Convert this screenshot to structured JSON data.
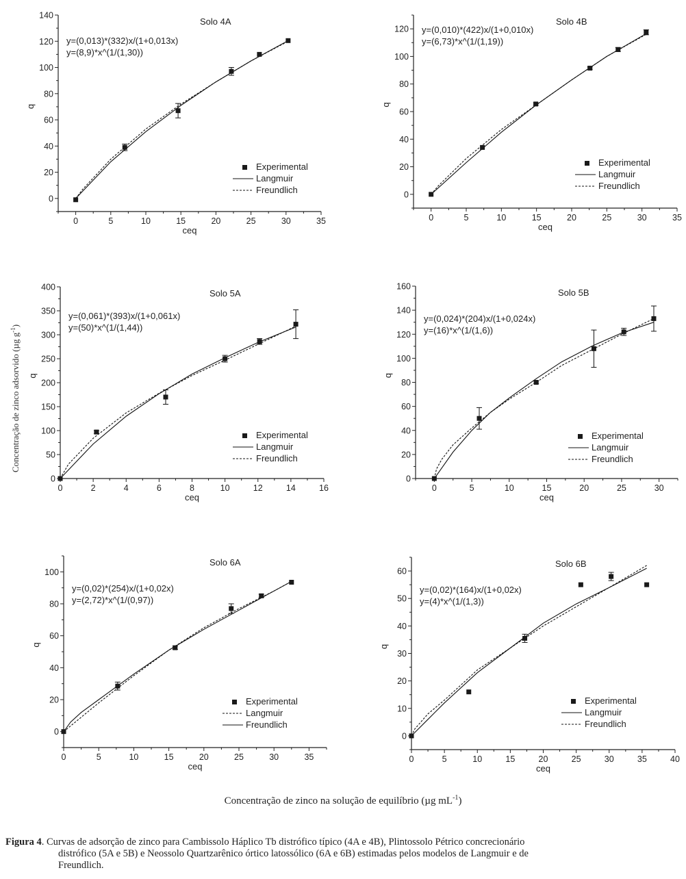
{
  "figure": {
    "shared_ylabel": "Concentração de zinco adsorvido (µg g",
    "shared_ylabel_sup": "-1",
    "shared_ylabel_end": ")",
    "shared_xlabel": "Concentração de zinco na solução de equilíbrio (µg mL",
    "shared_xlabel_sup": "-1",
    "shared_xlabel_end": ")",
    "caption_label": "Figura 4",
    "caption_line1": ". Curvas de adsorção de zinco para Cambissolo Háplico Tb distrófico típico (4A e 4B), Plintossolo Pétrico concrecionário",
    "caption_line2": "distrófico (5A e 5B) e Neossolo Quartzarênico órtico latossólico (6A e 6B) estimadas pelos modelos de Langmuir e de",
    "caption_line3": "Freundlich."
  },
  "chart_data": [
    {
      "type": "scatter",
      "title": "Solo 4A",
      "xlabel": "ceq",
      "ylabel": "q",
      "xlim": [
        -2.5,
        35
      ],
      "ylim": [
        -10,
        140
      ],
      "xticks": [
        0,
        5,
        10,
        15,
        20,
        25,
        30,
        35
      ],
      "yticks": [
        0,
        20,
        40,
        60,
        80,
        100,
        120,
        140
      ],
      "equations": [
        "y=(0,013)*(332)x/(1+0,013x)",
        "y=(8,9)*x^(1/(1,30))"
      ],
      "legend": [
        {
          "label": "Experimental",
          "style": "marker"
        },
        {
          "label": "Langmuir",
          "style": "solid"
        },
        {
          "label": "Freundlich",
          "style": "dashed"
        }
      ],
      "legend_position": "bottom-right",
      "series": [
        {
          "name": "Experimental",
          "x": [
            0,
            7,
            14.6,
            22.2,
            26.2,
            30.3
          ],
          "y": [
            -1,
            39,
            67,
            97,
            110,
            120.5
          ],
          "yerr": [
            0,
            2.5,
            5.5,
            3,
            0.5,
            0.5
          ]
        },
        {
          "name": "Langmuir",
          "style": "solid",
          "x": [
            0,
            5,
            10,
            15,
            20,
            25,
            30.3
          ],
          "y": [
            0,
            28,
            51,
            71,
            89,
            105,
            120.5
          ]
        },
        {
          "name": "Freundlich",
          "style": "dashed",
          "x": [
            0,
            1,
            5,
            10,
            15,
            20,
            25,
            30.3
          ],
          "y": [
            0,
            7,
            30,
            53,
            72,
            89,
            105,
            120
          ]
        }
      ]
    },
    {
      "type": "scatter",
      "title": "Solo 4B",
      "xlabel": "ceq",
      "ylabel": "q",
      "xlim": [
        -2.5,
        35
      ],
      "ylim": [
        -10,
        130
      ],
      "xticks": [
        0,
        5,
        10,
        15,
        20,
        25,
        30,
        35
      ],
      "yticks": [
        0,
        20,
        40,
        60,
        80,
        100,
        120
      ],
      "equations": [
        "y=(0,010)*(422)x/(1+0,010x)",
        "y=(6,73)*x^(1/(1,19))"
      ],
      "legend": [
        {
          "label": "Experimental",
          "style": "marker"
        },
        {
          "label": "Langmuir",
          "style": "solid"
        },
        {
          "label": "Freundlich",
          "style": "dashed"
        }
      ],
      "legend_position": "bottom-right",
      "series": [
        {
          "name": "Experimental",
          "x": [
            0,
            7.3,
            14.9,
            22.6,
            26.6,
            30.6
          ],
          "y": [
            0,
            34,
            65.5,
            91.5,
            105,
            117.5
          ],
          "yerr": [
            0,
            0.5,
            0.8,
            0.8,
            1.5,
            1.8
          ]
        },
        {
          "name": "Langmuir",
          "style": "solid",
          "x": [
            0,
            5,
            10,
            15,
            20,
            25,
            30.6
          ],
          "y": [
            0,
            23,
            45,
            65,
            83,
            100,
            116.5
          ]
        },
        {
          "name": "Freundlich",
          "style": "dashed",
          "x": [
            0,
            1,
            5,
            10,
            15,
            20,
            25,
            30.6
          ],
          "y": [
            0,
            6,
            26,
            47,
            65,
            83,
            100,
            116
          ]
        }
      ]
    },
    {
      "type": "scatter",
      "title": "Solo 5A",
      "xlabel": "ceq",
      "ylabel": "q",
      "xlim": [
        0,
        16
      ],
      "ylim": [
        0,
        400
      ],
      "xticks": [
        0,
        2,
        4,
        6,
        8,
        10,
        12,
        14,
        16
      ],
      "yticks": [
        0,
        50,
        100,
        150,
        200,
        250,
        300,
        350,
        400
      ],
      "equations": [
        "y=(0,061)*(393)x/(1+0,061x)",
        "y=(50)*x^(1/(1,44))"
      ],
      "legend": [
        {
          "label": "Experimental",
          "style": "marker"
        },
        {
          "label": "Langmuir",
          "style": "solid"
        },
        {
          "label": "Freundlich",
          "style": "dashed"
        }
      ],
      "legend_position": "bottom-right",
      "series": [
        {
          "name": "Experimental",
          "x": [
            0,
            2.2,
            6.4,
            10,
            12.1,
            14.3
          ],
          "y": [
            0,
            97,
            170,
            250,
            286,
            322
          ],
          "yerr": [
            0,
            3,
            15,
            7,
            6,
            30
          ]
        },
        {
          "name": "Langmuir",
          "style": "solid",
          "x": [
            0,
            2,
            4,
            6,
            8,
            10,
            12,
            14.3
          ],
          "y": [
            0,
            72,
            130,
            177,
            218,
            252,
            284,
            316
          ]
        },
        {
          "name": "Freundlich",
          "style": "dashed",
          "x": [
            0,
            0.5,
            2,
            4,
            6,
            8,
            10,
            12,
            14.3
          ],
          "y": [
            0,
            30,
            84,
            137,
            178,
            215,
            247,
            280,
            318
          ]
        }
      ]
    },
    {
      "type": "scatter",
      "title": "Solo 5B",
      "xlabel": "ceq",
      "ylabel": "q",
      "xlim": [
        -2.5,
        32.5
      ],
      "ylim": [
        0,
        160
      ],
      "xticks": [
        0,
        5,
        10,
        15,
        20,
        25,
        30
      ],
      "yticks": [
        0,
        20,
        40,
        60,
        80,
        100,
        120,
        140,
        160
      ],
      "equations": [
        "y=(0,024)*(204)x/(1+0,024x)",
        "y=(16)*x^(1/(1,6))"
      ],
      "legend": [
        {
          "label": "Experimental",
          "style": "marker"
        },
        {
          "label": "Langmuir",
          "style": "solid"
        },
        {
          "label": "Freundlich",
          "style": "dashed"
        }
      ],
      "legend_position": "bottom-right",
      "series": [
        {
          "name": "Experimental",
          "x": [
            0,
            6,
            13.6,
            21.3,
            25.3,
            29.3
          ],
          "y": [
            0,
            50,
            80,
            108,
            122,
            133
          ],
          "yerr": [
            0,
            9,
            1,
            15.5,
            3,
            10.5
          ]
        },
        {
          "name": "Langmuir",
          "style": "solid",
          "x": [
            0,
            2.5,
            5,
            7.5,
            10,
            13.6,
            17,
            21,
            25,
            29.3
          ],
          "y": [
            0,
            22,
            40,
            55,
            67,
            83,
            97,
            110,
            121,
            130
          ]
        },
        {
          "name": "Freundlich",
          "style": "dashed",
          "x": [
            0,
            0.3,
            1,
            2.5,
            5,
            7.5,
            10,
            13.6,
            17,
            21,
            25,
            29.3
          ],
          "y": [
            0,
            8,
            16,
            28,
            42,
            55,
            66,
            80,
            94,
            107,
            120,
            133
          ]
        }
      ]
    },
    {
      "type": "scatter",
      "title": "Solo 6A",
      "xlabel": "ceq",
      "ylabel": "q",
      "xlim": [
        0,
        37.5
      ],
      "ylim": [
        -10,
        110
      ],
      "xticks": [
        0,
        5,
        10,
        15,
        20,
        25,
        30,
        35
      ],
      "yticks": [
        0,
        20,
        40,
        60,
        80,
        100
      ],
      "equations": [
        "y=(0,02)*(254)x/(1+0,02x)",
        "y=(2,72)*x^(1/(0,97))"
      ],
      "legend": [
        {
          "label": "Experimental",
          "style": "marker"
        },
        {
          "label": "Langmuir",
          "style": "dashed"
        },
        {
          "label": "Freundlich",
          "style": "solid"
        }
      ],
      "legend_position": "bottom-right",
      "series": [
        {
          "name": "Experimental",
          "x": [
            0,
            7.7,
            15.9,
            23.9,
            28.2,
            32.5
          ],
          "y": [
            0,
            28.5,
            52.5,
            77,
            85,
            93.5
          ],
          "yerr": [
            0,
            2.5,
            1,
            3,
            1,
            0.5
          ]
        },
        {
          "name": "Langmuir",
          "style": "dashed",
          "x": [
            0,
            5,
            10,
            15,
            20,
            25,
            30,
            32.5
          ],
          "y": [
            0,
            18,
            35,
            51,
            65,
            77,
            88,
            94
          ]
        },
        {
          "name": "Freundlich",
          "style": "solid",
          "x": [
            0,
            1,
            2.5,
            5,
            7.5,
            10,
            15,
            20,
            25,
            30,
            32.5
          ],
          "y": [
            0,
            6,
            12,
            20,
            28,
            36,
            51,
            64,
            76,
            88,
            94
          ]
        }
      ]
    },
    {
      "type": "scatter",
      "title": "Solo 6B",
      "xlabel": "ceq",
      "ylabel": "q",
      "xlim": [
        0,
        40
      ],
      "ylim": [
        -5,
        65
      ],
      "xticks": [
        0,
        5,
        10,
        15,
        20,
        25,
        30,
        35,
        40
      ],
      "yticks": [
        0,
        10,
        20,
        30,
        40,
        50,
        60
      ],
      "equations": [
        "y=(0,02)*(164)x/(1+0,02x)",
        "y=(4)*x^(1/(1,3))"
      ],
      "legend": [
        {
          "label": "Experimental",
          "style": "marker"
        },
        {
          "label": "Langmuir",
          "style": "solid"
        },
        {
          "label": "Freundlich",
          "style": "dashed"
        }
      ],
      "legend_position": "bottom-right",
      "series": [
        {
          "name": "Experimental",
          "x": [
            0,
            8.7,
            17.2,
            25.7,
            30.3,
            35.7
          ],
          "y": [
            0,
            16,
            35.5,
            55,
            58,
            55
          ],
          "yerr": [
            0,
            0.5,
            1.5,
            0.5,
            1.5,
            0.5
          ]
        },
        {
          "name": "Langmuir",
          "style": "solid",
          "x": [
            0,
            2.5,
            5,
            10,
            15,
            20,
            25,
            30,
            35.7
          ],
          "y": [
            0,
            6,
            12,
            23,
            32,
            41,
            48,
            54,
            61
          ]
        },
        {
          "name": "Freundlich",
          "style": "dashed",
          "x": [
            0,
            0.5,
            2.5,
            5,
            10,
            15,
            20,
            25,
            30,
            35.7
          ],
          "y": [
            0,
            2.5,
            8,
            13,
            24,
            32,
            40,
            47,
            54,
            62
          ]
        }
      ]
    }
  ]
}
